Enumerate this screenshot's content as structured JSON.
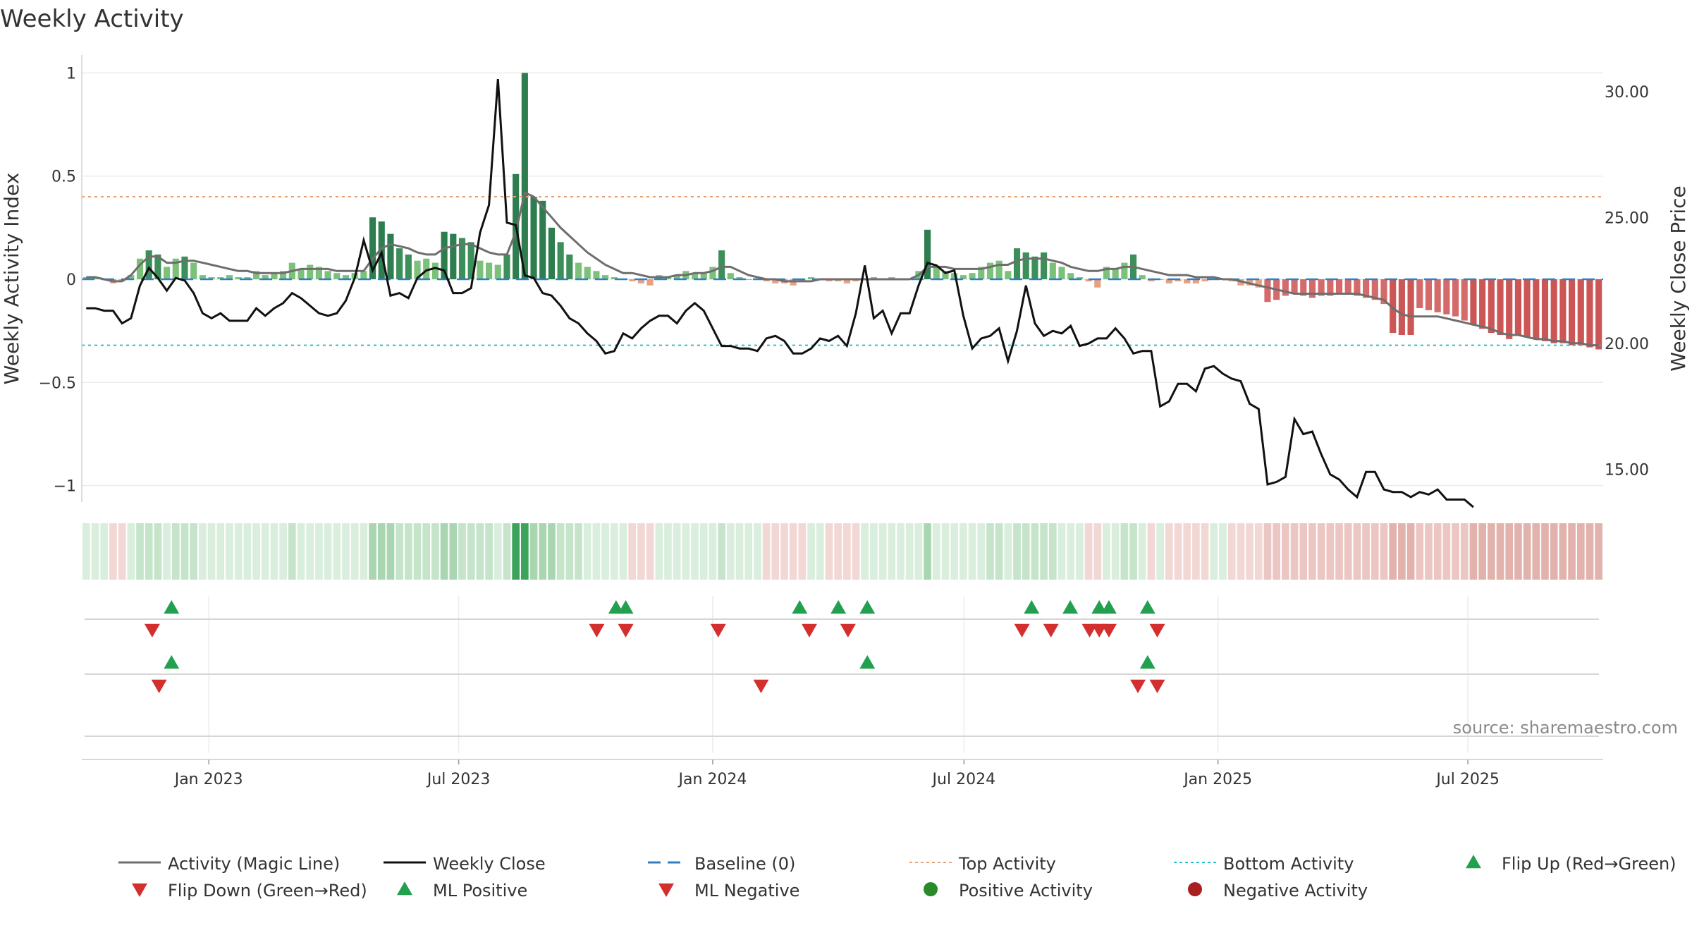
{
  "chart_data": {
    "type": "bar",
    "title": "Weekly Activity",
    "ylabel": "Weekly Activity Index",
    "y2label": "Weekly Close Price",
    "ylim": [
      -1.08,
      1.08
    ],
    "y2lim": [
      13.7,
      31.4
    ],
    "yticks": [
      {
        "value": 1,
        "label": "1"
      },
      {
        "value": 0.5,
        "label": "0.5"
      },
      {
        "value": 0,
        "label": "0"
      },
      {
        "value": -0.5,
        "label": "−0.5"
      },
      {
        "value": -1,
        "label": "−1"
      }
    ],
    "y2ticks": [
      {
        "value": 30,
        "label": "30.00"
      },
      {
        "value": 25,
        "label": "25.00"
      },
      {
        "value": 20,
        "label": "20.00"
      },
      {
        "value": 15,
        "label": "15.00"
      }
    ],
    "x_start": "2022-10-01",
    "x_end": "2025-10-07",
    "xticks": [
      {
        "date": "2023-01-01",
        "label": "Jan 2023"
      },
      {
        "date": "2023-07-01",
        "label": "Jul 2023"
      },
      {
        "date": "2024-01-01",
        "label": "Jan 2024"
      },
      {
        "date": "2024-07-01",
        "label": "Jul 2024"
      },
      {
        "date": "2025-01-01",
        "label": "Jan 2025"
      },
      {
        "date": "2025-07-01",
        "label": "Jul 2025"
      }
    ],
    "first_week": "2022-10-03",
    "top_activity": 0.4,
    "bottom_activity": -0.32,
    "activity": [
      0.01,
      0.01,
      0.0,
      -0.02,
      -0.01,
      0.02,
      0.1,
      0.14,
      0.12,
      0.06,
      0.1,
      0.11,
      0.08,
      0.02,
      0.01,
      0.01,
      0.02,
      0.01,
      0.01,
      0.04,
      0.02,
      0.03,
      0.04,
      0.08,
      0.05,
      0.07,
      0.06,
      0.04,
      0.03,
      0.02,
      0.03,
      0.04,
      0.3,
      0.28,
      0.22,
      0.15,
      0.12,
      0.09,
      0.1,
      0.08,
      0.23,
      0.22,
      0.2,
      0.18,
      0.09,
      0.08,
      0.07,
      0.12,
      0.51,
      1.0,
      0.4,
      0.38,
      0.25,
      0.18,
      0.12,
      0.08,
      0.06,
      0.04,
      0.02,
      0.01,
      0.0,
      -0.01,
      -0.02,
      -0.03,
      0.02,
      0.01,
      0.02,
      0.04,
      0.03,
      0.03,
      0.06,
      0.14,
      0.03,
      0.01,
      0.0,
      0.0,
      -0.01,
      -0.02,
      -0.02,
      -0.03,
      -0.01,
      0.01,
      0.0,
      -0.01,
      -0.01,
      -0.02,
      -0.01,
      0.0,
      0.01,
      0.0,
      0.01,
      0.0,
      0.0,
      0.04,
      0.24,
      0.06,
      0.04,
      0.03,
      0.02,
      0.03,
      0.06,
      0.08,
      0.09,
      0.04,
      0.15,
      0.13,
      0.11,
      0.13,
      0.08,
      0.06,
      0.03,
      0.01,
      -0.01,
      -0.04,
      0.06,
      0.05,
      0.08,
      0.12,
      0.02,
      -0.01,
      0.0,
      -0.02,
      -0.01,
      -0.02,
      -0.02,
      -0.01,
      0.0,
      0.0,
      -0.01,
      -0.03,
      -0.03,
      -0.04,
      -0.11,
      -0.1,
      -0.08,
      -0.07,
      -0.08,
      -0.09,
      -0.08,
      -0.08,
      -0.07,
      -0.07,
      -0.08,
      -0.09,
      -0.1,
      -0.12,
      -0.26,
      -0.27,
      -0.27,
      -0.14,
      -0.15,
      -0.16,
      -0.17,
      -0.18,
      -0.2,
      -0.22,
      -0.24,
      -0.26,
      -0.27,
      -0.29,
      -0.27,
      -0.28,
      -0.29,
      -0.3,
      -0.31,
      -0.31,
      -0.32,
      -0.32,
      -0.33,
      -0.34
    ],
    "magic_line": [
      0.01,
      0.01,
      0.0,
      -0.01,
      -0.01,
      0.02,
      0.07,
      0.11,
      0.11,
      0.08,
      0.08,
      0.09,
      0.09,
      0.08,
      0.07,
      0.06,
      0.05,
      0.04,
      0.04,
      0.03,
      0.03,
      0.03,
      0.03,
      0.04,
      0.05,
      0.05,
      0.05,
      0.05,
      0.04,
      0.04,
      0.04,
      0.04,
      0.1,
      0.15,
      0.17,
      0.16,
      0.15,
      0.13,
      0.12,
      0.12,
      0.15,
      0.16,
      0.17,
      0.17,
      0.15,
      0.13,
      0.12,
      0.12,
      0.23,
      0.42,
      0.4,
      0.35,
      0.3,
      0.25,
      0.21,
      0.17,
      0.13,
      0.1,
      0.07,
      0.05,
      0.03,
      0.03,
      0.02,
      0.01,
      0.01,
      0.01,
      0.02,
      0.02,
      0.03,
      0.03,
      0.04,
      0.06,
      0.06,
      0.04,
      0.02,
      0.01,
      0.0,
      0.0,
      -0.01,
      -0.01,
      -0.01,
      -0.01,
      0.0,
      0.0,
      0.0,
      0.0,
      0.0,
      0.0,
      0.0,
      0.0,
      0.0,
      0.0,
      0.0,
      0.02,
      0.06,
      0.06,
      0.06,
      0.05,
      0.05,
      0.05,
      0.05,
      0.06,
      0.07,
      0.07,
      0.09,
      0.1,
      0.1,
      0.1,
      0.09,
      0.08,
      0.06,
      0.05,
      0.04,
      0.04,
      0.05,
      0.05,
      0.06,
      0.06,
      0.05,
      0.04,
      0.03,
      0.02,
      0.02,
      0.02,
      0.01,
      0.01,
      0.01,
      0.0,
      0.0,
      -0.01,
      -0.02,
      -0.03,
      -0.04,
      -0.05,
      -0.06,
      -0.07,
      -0.07,
      -0.07,
      -0.07,
      -0.07,
      -0.07,
      -0.07,
      -0.07,
      -0.08,
      -0.09,
      -0.1,
      -0.14,
      -0.17,
      -0.18,
      -0.18,
      -0.18,
      -0.18,
      -0.19,
      -0.2,
      -0.21,
      -0.22,
      -0.23,
      -0.24,
      -0.26,
      -0.27,
      -0.27,
      -0.28,
      -0.29,
      -0.29,
      -0.3,
      -0.3,
      -0.31,
      -0.31,
      -0.32,
      -0.32
    ],
    "weekly_close": [
      21.4,
      21.4,
      21.3,
      21.3,
      20.8,
      21.0,
      22.3,
      23.0,
      22.6,
      22.1,
      22.6,
      22.5,
      22.0,
      21.2,
      21.0,
      21.2,
      20.9,
      20.9,
      20.9,
      21.4,
      21.1,
      21.4,
      21.6,
      22.0,
      21.8,
      21.5,
      21.2,
      21.1,
      21.2,
      21.7,
      22.6,
      24.1,
      22.9,
      23.6,
      21.9,
      22.0,
      21.8,
      22.6,
      22.9,
      23.0,
      22.9,
      22.0,
      22.0,
      22.2,
      24.4,
      25.5,
      30.5,
      24.8,
      24.7,
      22.7,
      22.6,
      22.0,
      21.9,
      21.5,
      21.0,
      20.8,
      20.4,
      20.1,
      19.6,
      19.7,
      20.4,
      20.2,
      20.6,
      20.9,
      21.1,
      21.1,
      20.8,
      21.3,
      21.6,
      21.3,
      20.6,
      19.9,
      19.9,
      19.8,
      19.8,
      19.7,
      20.2,
      20.3,
      20.1,
      19.6,
      19.6,
      19.8,
      20.2,
      20.1,
      20.3,
      19.9,
      21.2,
      23.1,
      21.0,
      21.3,
      20.4,
      21.2,
      21.2,
      22.3,
      23.2,
      23.1,
      22.8,
      22.9,
      21.1,
      19.8,
      20.2,
      20.3,
      20.6,
      19.3,
      20.5,
      22.3,
      20.8,
      20.3,
      20.5,
      20.4,
      20.7,
      19.9,
      20.0,
      20.2,
      20.2,
      20.6,
      20.2,
      19.6,
      19.7,
      19.7,
      17.5,
      17.7,
      18.4,
      18.4,
      18.1,
      19.0,
      19.1,
      18.8,
      18.6,
      18.5,
      17.6,
      17.4,
      14.4,
      14.5,
      14.7,
      17.0,
      16.4,
      16.5,
      15.6,
      14.8,
      14.6,
      14.2,
      13.9,
      14.9,
      14.9,
      14.2,
      14.1,
      14.1,
      13.9,
      14.1,
      14.0,
      14.2,
      13.8,
      13.8,
      13.8,
      13.5
    ],
    "flip_rows": {
      "flip_up": [
        "2022-12-05",
        "2023-10-23",
        "2023-10-30",
        "2024-03-04",
        "2024-04-01",
        "2024-04-22",
        "2024-08-19",
        "2024-09-16",
        "2024-10-07",
        "2024-10-14",
        "2024-11-11"
      ],
      "flip_down": [
        "2022-11-21",
        "2023-10-09",
        "2023-10-30",
        "2024-01-05",
        "2024-03-11",
        "2024-04-08",
        "2024-08-12",
        "2024-09-02",
        "2024-09-30",
        "2024-10-07",
        "2024-10-14",
        "2024-11-18"
      ],
      "ml_positive": [
        "2022-12-05",
        "2024-04-22",
        "2024-11-11"
      ],
      "ml_negative": [
        "2022-11-26",
        "2024-02-05",
        "2024-11-04",
        "2024-11-18"
      ]
    },
    "legend": [
      {
        "label": "Activity (Magic Line)",
        "kind": "line",
        "color": "#6e6e6e"
      },
      {
        "label": "Weekly Close",
        "kind": "line",
        "color": "#111111"
      },
      {
        "label": "Baseline (0)",
        "kind": "dash",
        "color": "#2f7fc1"
      },
      {
        "label": "Top Activity",
        "kind": "dot",
        "color": "#e8a070"
      },
      {
        "label": "Bottom Activity",
        "kind": "dot",
        "color": "#22c0c8"
      },
      {
        "label": "Flip Up (Red→Green)",
        "kind": "tri-up",
        "color": "#22a050"
      },
      {
        "label": "Flip Down (Green→Red)",
        "kind": "tri-down",
        "color": "#d32f2f"
      },
      {
        "label": "ML Positive",
        "kind": "tri-up",
        "color": "#22a050"
      },
      {
        "label": "ML Negative",
        "kind": "tri-down",
        "color": "#d32f2f"
      },
      {
        "label": "Positive Activity",
        "kind": "circle",
        "color": "#2a8a2a"
      },
      {
        "label": "Negative Activity",
        "kind": "circle",
        "color": "#a82020"
      }
    ],
    "source": "source: sharemaestro.com"
  }
}
